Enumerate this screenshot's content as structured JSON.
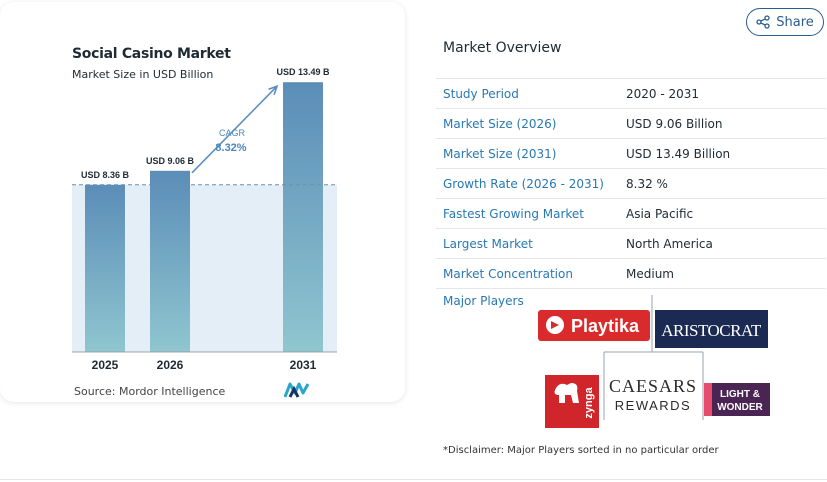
{
  "chart_data": {
    "type": "bar",
    "title": "Social Casino Market",
    "subtitle": "Market Size in USD Billion",
    "categories": [
      "2025",
      "2026",
      "2031"
    ],
    "values": [
      8.36,
      9.06,
      13.49
    ],
    "data_labels": [
      "USD 8.36 B",
      "USD 9.06 B",
      "USD 13.49 B"
    ],
    "cagr_label": "CAGR",
    "cagr_value": "8.32%",
    "ylim": [
      0,
      14.5
    ],
    "grid": false,
    "colors": {
      "bar_top": "#5b8db8",
      "bar_bottom": "#8fc6cf",
      "shade": "#e4eef6",
      "arrow": "#5a8fbf",
      "cagr_text": "#4a87c0"
    }
  },
  "source": "Source: Mordor Intelligence",
  "share": {
    "label": "Share",
    "icon": "share-icon"
  },
  "overview": {
    "title": "Market Overview",
    "rows": [
      {
        "label": "Study Period",
        "value": "2020 - 2031"
      },
      {
        "label": "Market Size (2026)",
        "value": "USD 9.06 Billion"
      },
      {
        "label": "Market Size (2031)",
        "value": "USD 13.49 Billion"
      },
      {
        "label": "Growth Rate (2026 - 2031)",
        "value": "8.32 %"
      },
      {
        "label": "Fastest Growing Market",
        "value": "Asia Pacific"
      },
      {
        "label": "Largest Market",
        "value": "North America"
      },
      {
        "label": "Market Concentration",
        "value": "Medium"
      }
    ]
  },
  "major_players": {
    "label": "Major Players",
    "logos": [
      {
        "name": "Playtika",
        "text": "Playtika",
        "color": "#d92b2b"
      },
      {
        "name": "Aristocrat",
        "text": "ARISTOCRAT",
        "color": "#1b2a52"
      },
      {
        "name": "Zynga",
        "text": "zynga",
        "color": "#d0262b"
      },
      {
        "name": "Caesars Rewards",
        "text": "CAESARS",
        "text2": "REWARDS",
        "color": "#2b2b2b"
      },
      {
        "name": "Light & Wonder",
        "text": "LIGHT &",
        "text2": "WONDER",
        "color": "#4a2453"
      }
    ]
  },
  "disclaimer": "*Disclaimer: Major Players sorted in no particular order"
}
